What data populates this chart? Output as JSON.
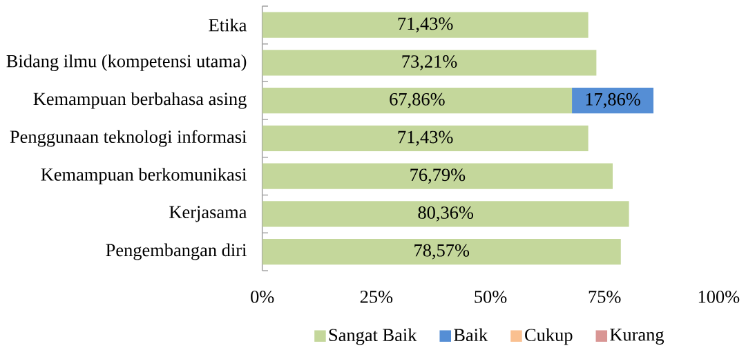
{
  "chart_data": {
    "type": "bar",
    "orientation": "horizontal",
    "stacked": true,
    "categories": [
      "Etika",
      "Bidang ilmu (kompetensi utama)",
      "Kemampuan berbahasa asing",
      "Penggunaan teknologi informasi",
      "Kemampuan berkomunikasi",
      "Kerjasama",
      "Pengembangan diri"
    ],
    "series": [
      {
        "name": "Sangat Baik",
        "color": "#c4d79b",
        "values": [
          71.43,
          73.21,
          67.86,
          71.43,
          76.79,
          80.36,
          78.57
        ],
        "value_labels": [
          "71,43%",
          "73,21%",
          "67,86%",
          "71,43%",
          "76,79%",
          "80,36%",
          "78,57%"
        ]
      },
      {
        "name": "Baik",
        "color": "#558ed5",
        "values": [
          null,
          null,
          17.86,
          null,
          null,
          null,
          null
        ],
        "value_labels": [
          null,
          null,
          "17,86%",
          null,
          null,
          null,
          null
        ]
      },
      {
        "name": "Cukup",
        "color": "#fac090",
        "values": [
          null,
          null,
          null,
          null,
          null,
          null,
          null
        ]
      },
      {
        "name": "Kurang",
        "color": "#d99694",
        "values": [
          null,
          null,
          null,
          null,
          null,
          null,
          null
        ]
      }
    ],
    "xlim": [
      0,
      100
    ],
    "xticks": [
      {
        "value": 0,
        "label": "0%"
      },
      {
        "value": 25,
        "label": "25%"
      },
      {
        "value": 50,
        "label": "50%"
      },
      {
        "value": 75,
        "label": "75%"
      },
      {
        "value": 100,
        "label": "100%"
      }
    ],
    "legend": "bottom"
  }
}
